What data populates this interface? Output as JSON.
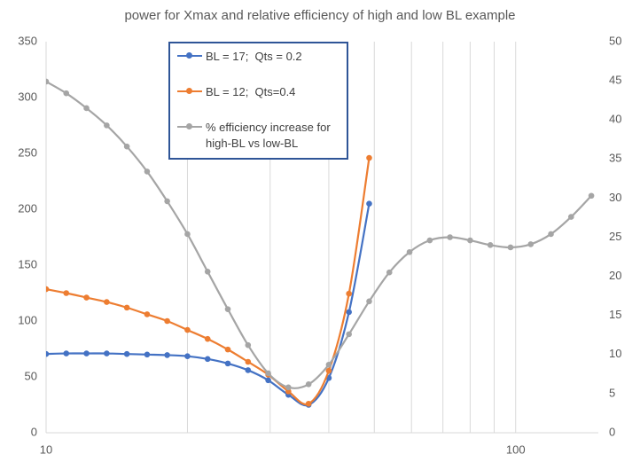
{
  "chart_data": {
    "type": "line",
    "title": "power for Xmax and relative efficiency of high and low BL example",
    "x": [
      10,
      11.04,
      12.19,
      13.46,
      14.86,
      16.41,
      18.11,
      20,
      22.08,
      24.38,
      26.92,
      29.72,
      32.81,
      36.23,
      40,
      44.16,
      48.76,
      53.83,
      59.44,
      65.63,
      72.46,
      80,
      88.32,
      97.52,
      107.67,
      118.89,
      131.26,
      144.93
    ],
    "series": [
      {
        "name": "BL = 17;  Qts = 0.2",
        "color": "#4472c4",
        "values": [
          70.5,
          71,
          71,
          71,
          70.5,
          70,
          69.5,
          68.5,
          66,
          62,
          56,
          47,
          34,
          25,
          49,
          108,
          205,
          null,
          null,
          null,
          null,
          null,
          null,
          null,
          null,
          null,
          null,
          null
        ]
      },
      {
        "name": "BL = 12;  Qts=0.4",
        "color": "#ed7d31",
        "values": [
          128.5,
          125,
          121,
          117,
          112,
          106,
          100,
          92,
          84,
          74.5,
          63.5,
          52,
          37,
          26,
          55.5,
          124.5,
          246,
          null,
          null,
          null,
          null,
          null,
          null,
          null,
          null,
          null,
          null,
          null
        ]
      },
      {
        "name": "% efficiency increase for high-BL vs low-BL",
        "color": "#a5a5a5",
        "axis": "y2",
        "values": [
          44.9,
          43.4,
          41.5,
          39.3,
          36.6,
          33.4,
          29.6,
          25.4,
          20.6,
          15.8,
          11.2,
          7.6,
          5.8,
          6.2,
          8.7,
          12.6,
          16.8,
          20.5,
          23.1,
          24.6,
          25.0,
          24.6,
          24.0,
          23.7,
          24.1,
          25.4,
          27.6,
          30.3
        ]
      }
    ],
    "xlim": [
      10,
      150
    ],
    "xlog": true,
    "xticks": [
      10,
      100
    ],
    "x_minor_grid": [
      20,
      30,
      40,
      50,
      60,
      70,
      80,
      90
    ],
    "ylim": [
      0,
      350
    ],
    "yticks": [
      0,
      50,
      100,
      150,
      200,
      250,
      300,
      350
    ],
    "y2lim": [
      0,
      50
    ],
    "y2ticks": [
      0,
      5,
      10,
      15,
      20,
      25,
      30,
      35,
      40,
      45,
      50
    ],
    "grid": "x",
    "legend": "top-center",
    "smooth": true
  }
}
